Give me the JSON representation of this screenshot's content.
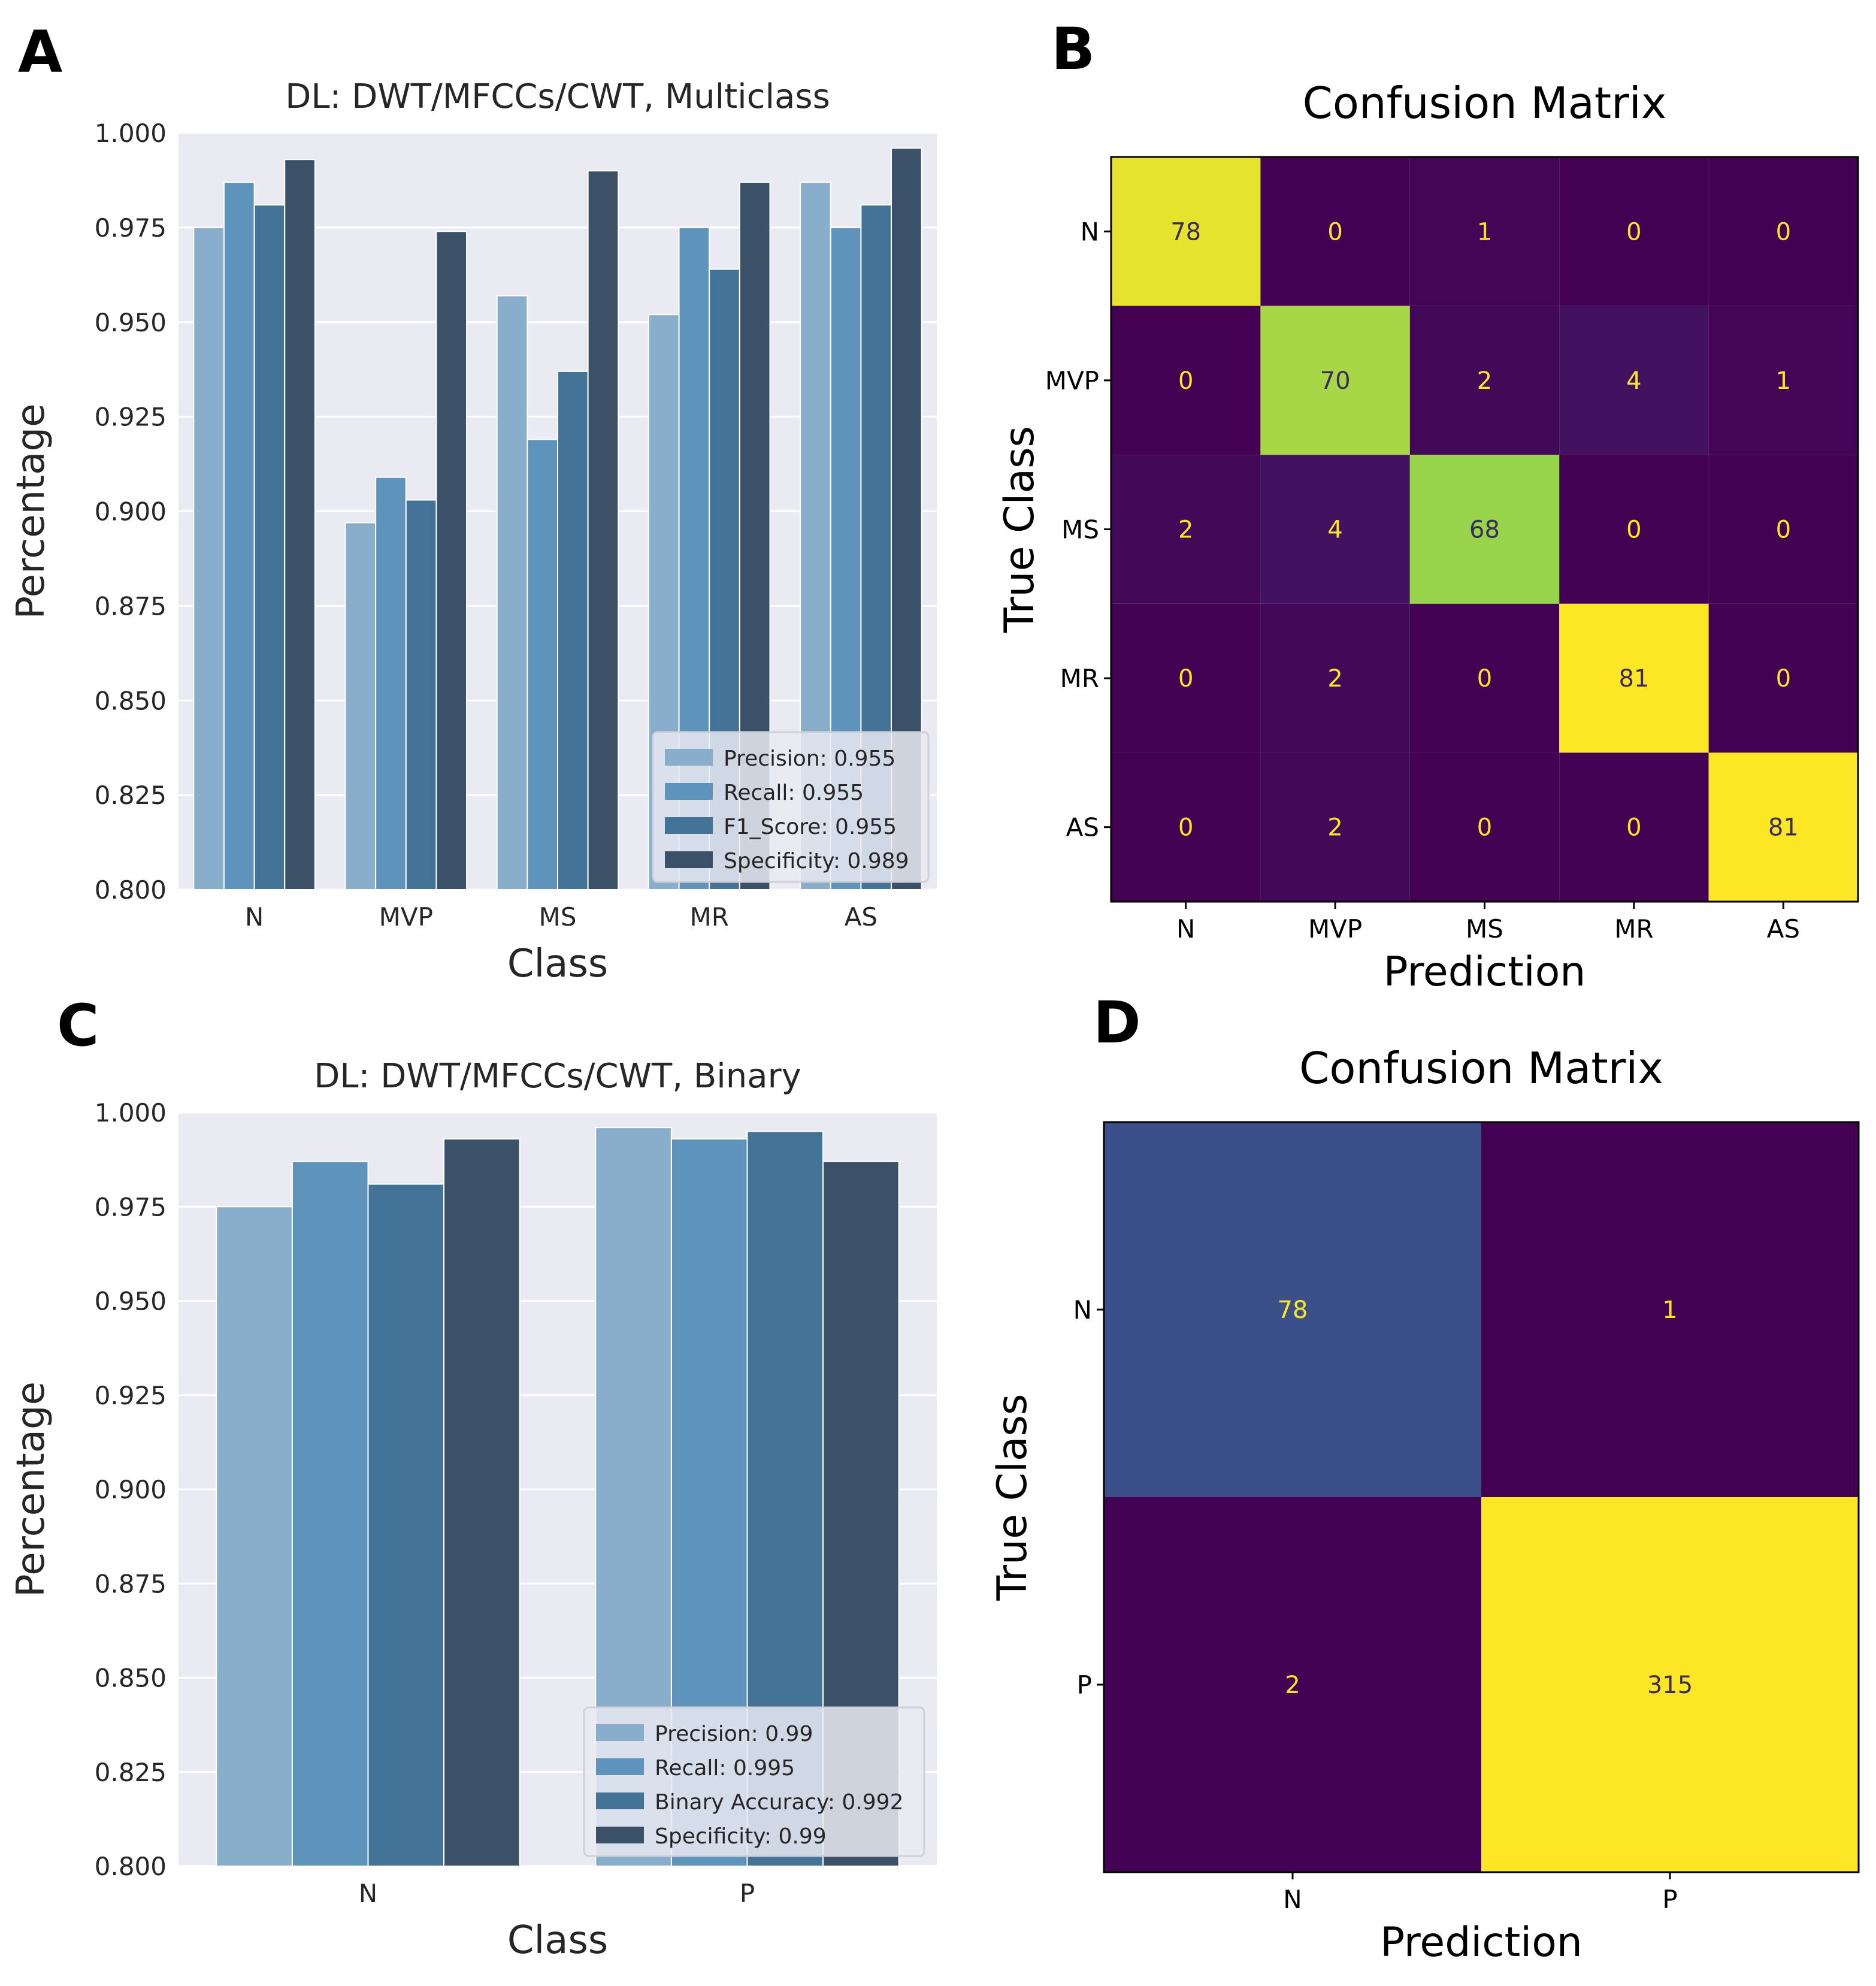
{
  "panels": {
    "A": {
      "letter": "A"
    },
    "B": {
      "letter": "B"
    },
    "C": {
      "letter": "C"
    },
    "D": {
      "letter": "D"
    }
  },
  "chart_data": [
    {
      "panel": "A",
      "type": "bar",
      "title": "DL: DWT/MFCCs/CWT, Multiclass",
      "xlabel": "Class",
      "ylabel": "Percentage",
      "categories": [
        "N",
        "MVP",
        "MS",
        "MR",
        "AS"
      ],
      "ylim": [
        0.8,
        1.0
      ],
      "yticks": [
        "0.800",
        "0.825",
        "0.850",
        "0.875",
        "0.900",
        "0.925",
        "0.950",
        "0.975",
        "1.000"
      ],
      "grid": true,
      "legend_position": "lower-right",
      "series": [
        {
          "name": "Precision: 0.955",
          "color": "#88aecb",
          "values": [
            0.975,
            0.897,
            0.957,
            0.952,
            0.987
          ]
        },
        {
          "name": "Recall: 0.955",
          "color": "#5e94bc",
          "values": [
            0.987,
            0.909,
            0.919,
            0.975,
            0.975
          ]
        },
        {
          "name": "F1_Score: 0.955",
          "color": "#437497",
          "values": [
            0.981,
            0.903,
            0.937,
            0.964,
            0.981
          ]
        },
        {
          "name": "Specificity: 0.989",
          "color": "#3b5167",
          "values": [
            0.993,
            0.974,
            0.99,
            0.987,
            0.996
          ]
        }
      ]
    },
    {
      "panel": "B",
      "type": "heatmap",
      "title": "Confusion Matrix",
      "xlabel": "Prediction",
      "ylabel": "True Class",
      "x_labels": [
        "N",
        "MVP",
        "MS",
        "MR",
        "AS"
      ],
      "y_labels": [
        "N",
        "MVP",
        "MS",
        "MR",
        "AS"
      ],
      "values": [
        [
          78,
          0,
          1,
          0,
          0
        ],
        [
          0,
          70,
          2,
          4,
          1
        ],
        [
          2,
          4,
          68,
          0,
          0
        ],
        [
          0,
          2,
          0,
          81,
          0
        ],
        [
          0,
          2,
          0,
          0,
          81
        ]
      ],
      "colormap": "viridis"
    },
    {
      "panel": "C",
      "type": "bar",
      "title": "DL: DWT/MFCCs/CWT, Binary",
      "xlabel": "Class",
      "ylabel": "Percentage",
      "categories": [
        "N",
        "P"
      ],
      "ylim": [
        0.8,
        1.0
      ],
      "yticks": [
        "0.800",
        "0.825",
        "0.850",
        "0.875",
        "0.900",
        "0.925",
        "0.950",
        "0.975",
        "1.000"
      ],
      "grid": true,
      "legend_position": "lower-right",
      "series": [
        {
          "name": "Precision: 0.99",
          "color": "#88aecb",
          "values": [
            0.975,
            0.996
          ]
        },
        {
          "name": "Recall: 0.995",
          "color": "#5e94bc",
          "values": [
            0.987,
            0.993
          ]
        },
        {
          "name": "Binary Accuracy: 0.992",
          "color": "#437497",
          "values": [
            0.981,
            0.995
          ]
        },
        {
          "name": "Specificity: 0.99",
          "color": "#3b5167",
          "values": [
            0.993,
            0.987
          ]
        }
      ]
    },
    {
      "panel": "D",
      "type": "heatmap",
      "title": "Confusion Matrix",
      "xlabel": "Prediction",
      "ylabel": "True Class",
      "x_labels": [
        "N",
        "P"
      ],
      "y_labels": [
        "N",
        "P"
      ],
      "values": [
        [
          78,
          1
        ],
        [
          2,
          315
        ]
      ],
      "colormap": "viridis"
    }
  ]
}
